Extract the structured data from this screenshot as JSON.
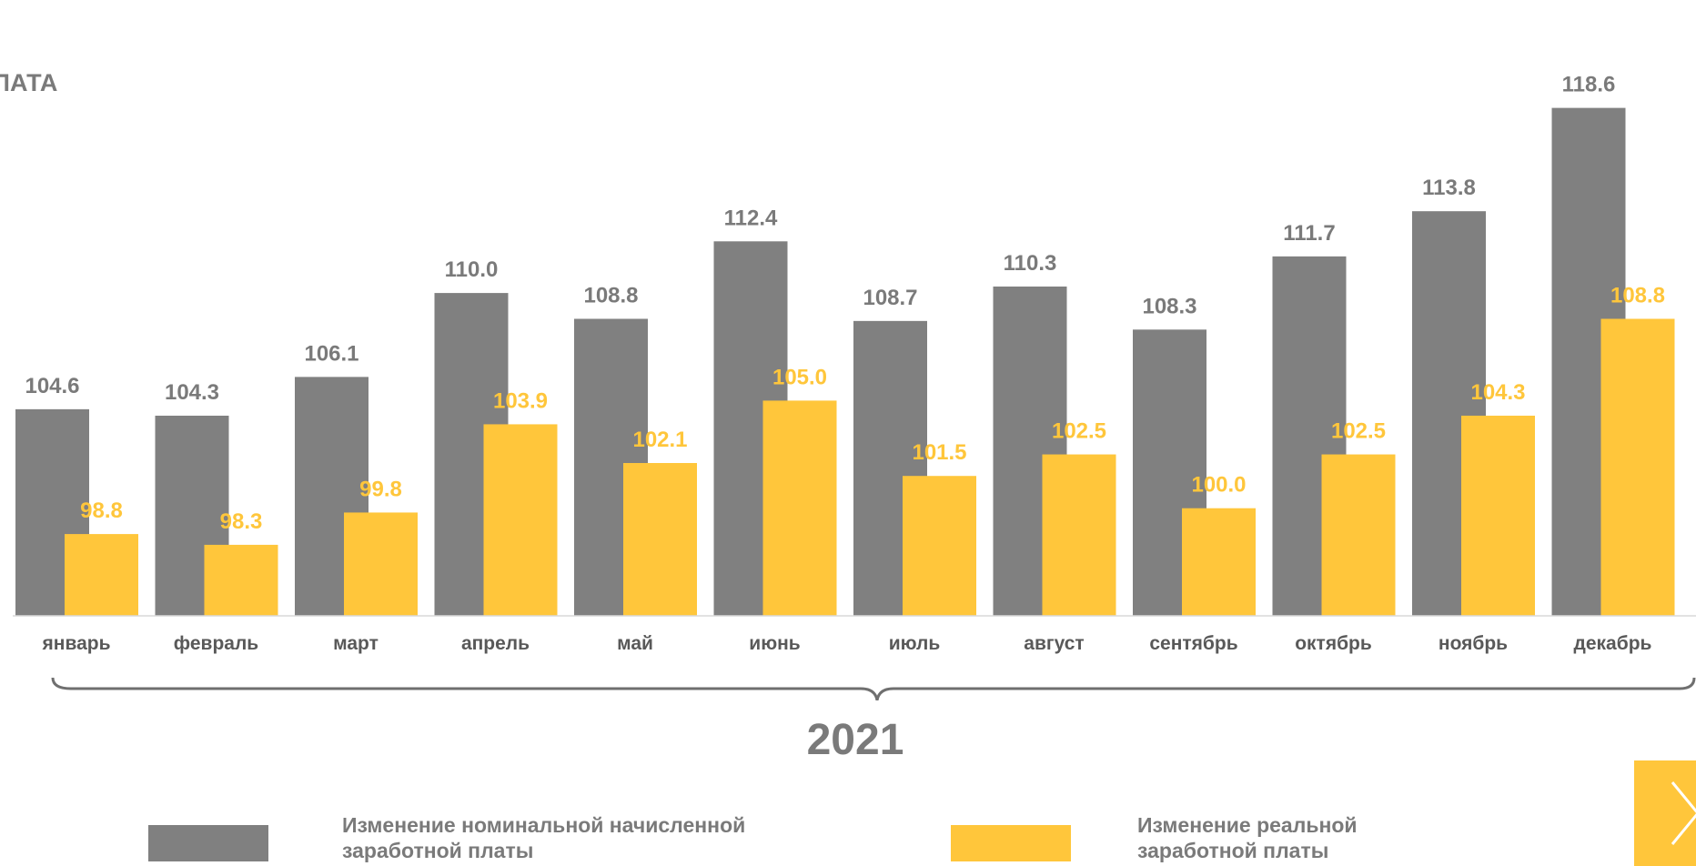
{
  "page": {
    "title_fragment": "ЛАТА",
    "year": "2021",
    "next_icon": "chevron-right-icon"
  },
  "colors": {
    "nominal": "#808080",
    "real": "#ffc63b",
    "nominal_label": "#7a7a7a",
    "real_label": "#ffc63b",
    "axis_text": "#595959",
    "bracket": "#6f6f6f"
  },
  "legend": {
    "nominal": "Изменение номинальной начисленной заработной платы",
    "real": "Изменение реальной заработной платы"
  },
  "chart_data": {
    "type": "bar",
    "categories": [
      "январь",
      "февраль",
      "март",
      "апрель",
      "май",
      "июнь",
      "июль",
      "август",
      "сентябрь",
      "октябрь",
      "ноябрь",
      "декабрь"
    ],
    "series": [
      {
        "name": "Изменение номинальной начисленной заработной платы",
        "values": [
          104.6,
          104.3,
          106.1,
          110.0,
          108.8,
          112.4,
          108.7,
          110.3,
          108.3,
          111.7,
          113.8,
          118.6
        ],
        "labels": [
          "104.6",
          "104.3",
          "106.1",
          "110.0",
          "108.8",
          "112.4",
          "108.7",
          "110.3",
          "108.3",
          "111.7",
          "113.8",
          "118.6"
        ]
      },
      {
        "name": "Изменение реальной заработной платы",
        "values": [
          98.8,
          98.3,
          99.8,
          103.9,
          102.1,
          105.0,
          101.5,
          102.5,
          100.0,
          102.5,
          104.3,
          108.8
        ],
        "labels": [
          "98.8",
          "98.3",
          "99.8",
          "103.9",
          "102.1",
          "105.0",
          "101.5",
          "102.5",
          "100.0",
          "102.5",
          "104.3",
          "108.8"
        ]
      }
    ],
    "ylim": [
      95,
      121.5
    ],
    "grid": false,
    "legend_position": "bottom",
    "xlabel": "2021",
    "ylabel": ""
  }
}
